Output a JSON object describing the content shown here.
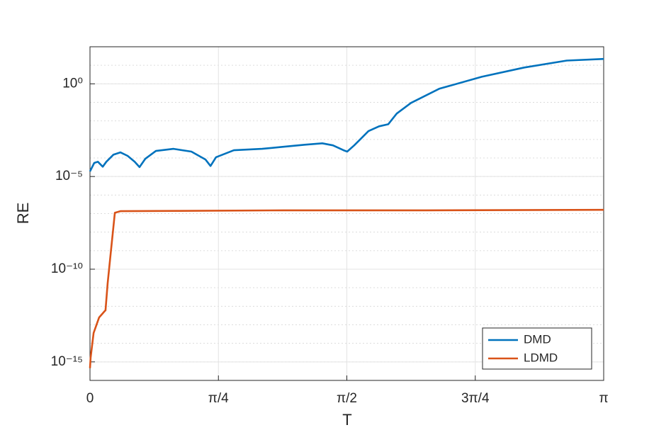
{
  "chart_data": {
    "type": "line",
    "xlabel": "T",
    "ylabel": "RE",
    "xlim": [
      0,
      3.14159
    ],
    "xticks": [
      0,
      {
        "value": 0.785398,
        "label": "π/4"
      },
      {
        "value": 1.570796,
        "label": "π/2"
      },
      {
        "value": 2.356194,
        "label": "3π/4"
      },
      {
        "value": 3.14159,
        "label": "π"
      }
    ],
    "ylim": [
      1e-16,
      100
    ],
    "yscale": "log",
    "yticks": [
      {
        "value": 1e-15,
        "label": "10⁻¹⁵"
      },
      {
        "value": 1e-10,
        "label": "10⁻¹⁰"
      },
      {
        "value": 1e-05,
        "label": "10⁻⁵"
      },
      {
        "value": 1,
        "label": "10⁰"
      }
    ],
    "grid": true,
    "minor_grid": true,
    "legend": "lower right",
    "series": [
      {
        "name": "DMD",
        "color": "#0072bd",
        "x": [
          0,
          0.026,
          0.048,
          0.078,
          0.1,
          0.143,
          0.186,
          0.23,
          0.273,
          0.303,
          0.338,
          0.403,
          0.511,
          0.62,
          0.706,
          0.737,
          0.771,
          0.88,
          1.053,
          1.183,
          1.313,
          1.421,
          1.486,
          1.551,
          1.573,
          1.616,
          1.703,
          1.768,
          1.824,
          1.876,
          1.963,
          2.136,
          2.396,
          2.656,
          2.916,
          3.142
        ],
        "values": [
          1.9e-05,
          5.4e-05,
          6.3e-05,
          3.4e-05,
          6.3e-05,
          0.00015,
          0.0002,
          0.00013,
          6.3e-05,
          3.2e-05,
          9e-05,
          0.00024,
          0.00031,
          0.00022,
          8.3e-05,
          3.7e-05,
          0.00011,
          0.00026,
          0.00031,
          0.0004,
          0.00052,
          0.00062,
          0.00048,
          0.00026,
          0.00022,
          0.00048,
          0.0028,
          0.0051,
          0.0066,
          0.025,
          0.093,
          0.54,
          2.4,
          7.6,
          18,
          22
        ]
      },
      {
        "name": "LDMD",
        "color": "#d95319",
        "x": [
          0,
          0.004,
          0.022,
          0.056,
          0.091,
          0.095,
          0.108,
          0.13,
          0.152,
          0.186,
          0.533,
          1.183,
          2.05,
          3.142
        ],
        "values": [
          4.6e-16,
          1.7e-15,
          3.6e-14,
          2.5e-13,
          5.6e-13,
          6e-13,
          1.7e-11,
          1.4e-09,
          1.1e-07,
          1.35e-07,
          1.4e-07,
          1.5e-07,
          1.5e-07,
          1.6e-07
        ]
      }
    ]
  }
}
